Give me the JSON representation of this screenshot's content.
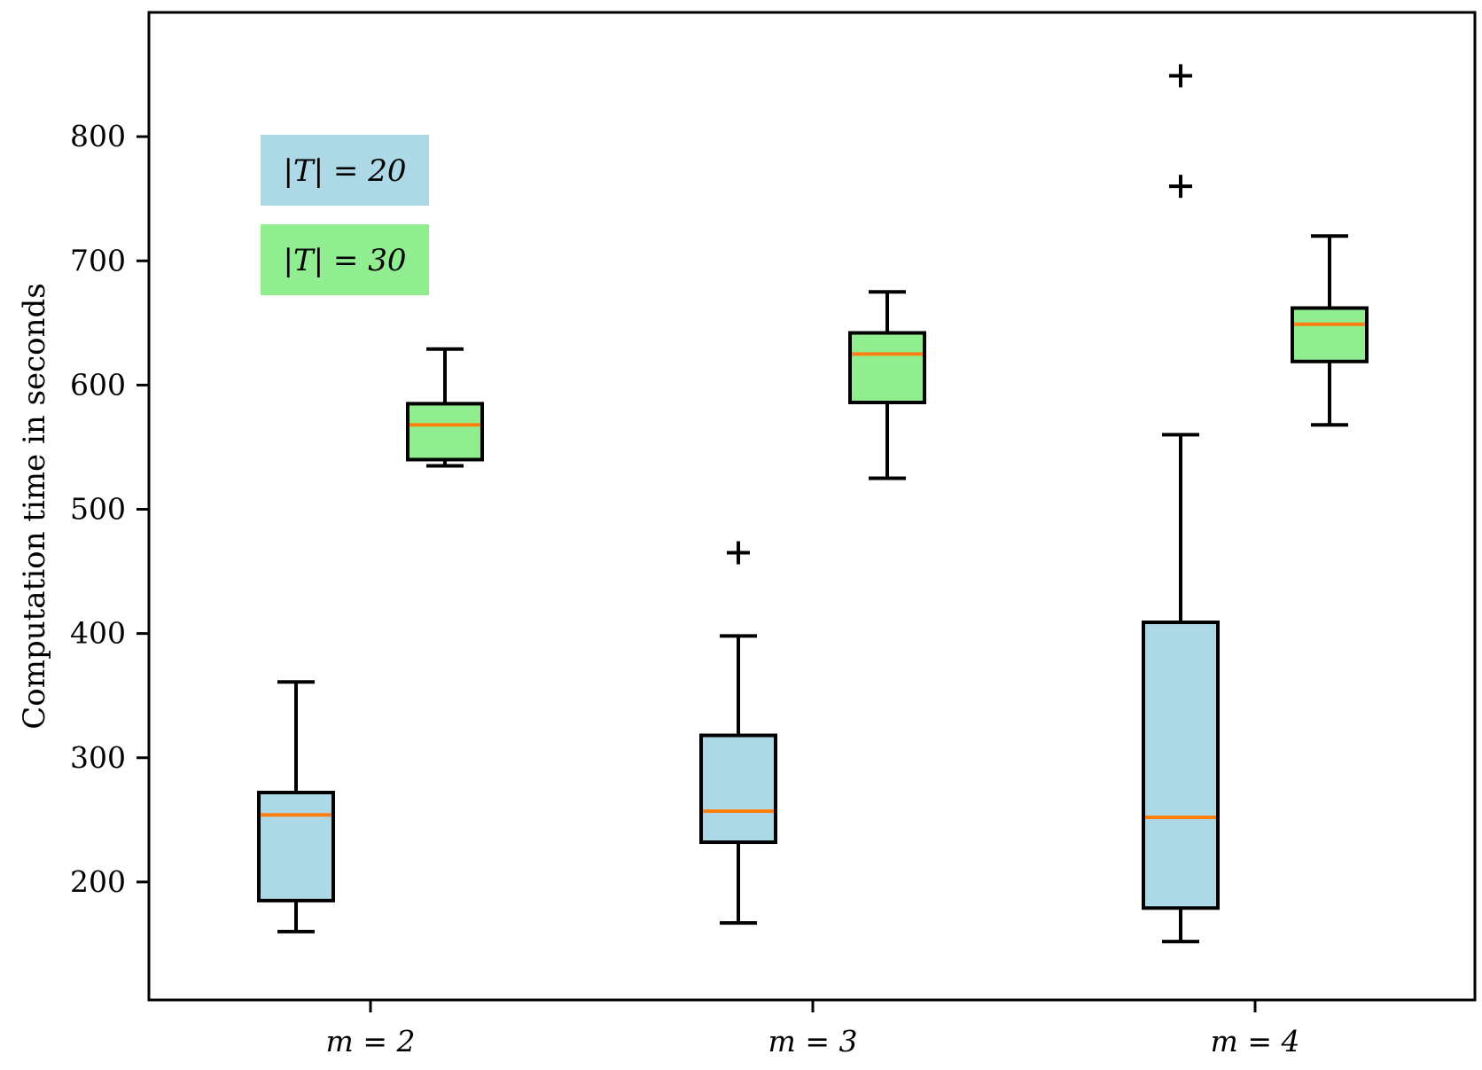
{
  "chart_data": {
    "type": "boxplot",
    "title": "",
    "xlabel": "",
    "ylabel": "Computation time in seconds",
    "categories": [
      "m = 2",
      "m = 3",
      "m = 4"
    ],
    "ylim": [
      105,
      900
    ],
    "yticks": [
      200,
      300,
      400,
      500,
      600,
      700,
      800
    ],
    "grid": false,
    "legend": {
      "placement": "top-left"
    },
    "series": [
      {
        "name": "|T| = 20",
        "color": "#add8e6",
        "boxes": [
          {
            "category": "m = 2",
            "whisker_low": 160,
            "q1": 185,
            "median": 254,
            "q3": 272,
            "whisker_high": 361,
            "outliers": []
          },
          {
            "category": "m = 3",
            "whisker_low": 167,
            "q1": 232,
            "median": 257,
            "q3": 318,
            "whisker_high": 398,
            "outliers": [
              465
            ]
          },
          {
            "category": "m = 4",
            "whisker_low": 152,
            "q1": 179,
            "median": 252,
            "q3": 409,
            "whisker_high": 560,
            "outliers": [
              760,
              849
            ]
          }
        ]
      },
      {
        "name": "|T| = 30",
        "color": "#90ee90",
        "boxes": [
          {
            "category": "m = 2",
            "whisker_low": 535,
            "q1": 540,
            "median": 568,
            "q3": 585,
            "whisker_high": 629,
            "outliers": []
          },
          {
            "category": "m = 3",
            "whisker_low": 525,
            "q1": 586,
            "median": 625,
            "q3": 642,
            "whisker_high": 675,
            "outliers": []
          },
          {
            "category": "m = 4",
            "whisker_low": 568,
            "q1": 619,
            "median": 649,
            "q3": 662,
            "whisker_high": 720,
            "outliers": []
          }
        ]
      }
    ],
    "median_color": "#ff7f0e"
  }
}
